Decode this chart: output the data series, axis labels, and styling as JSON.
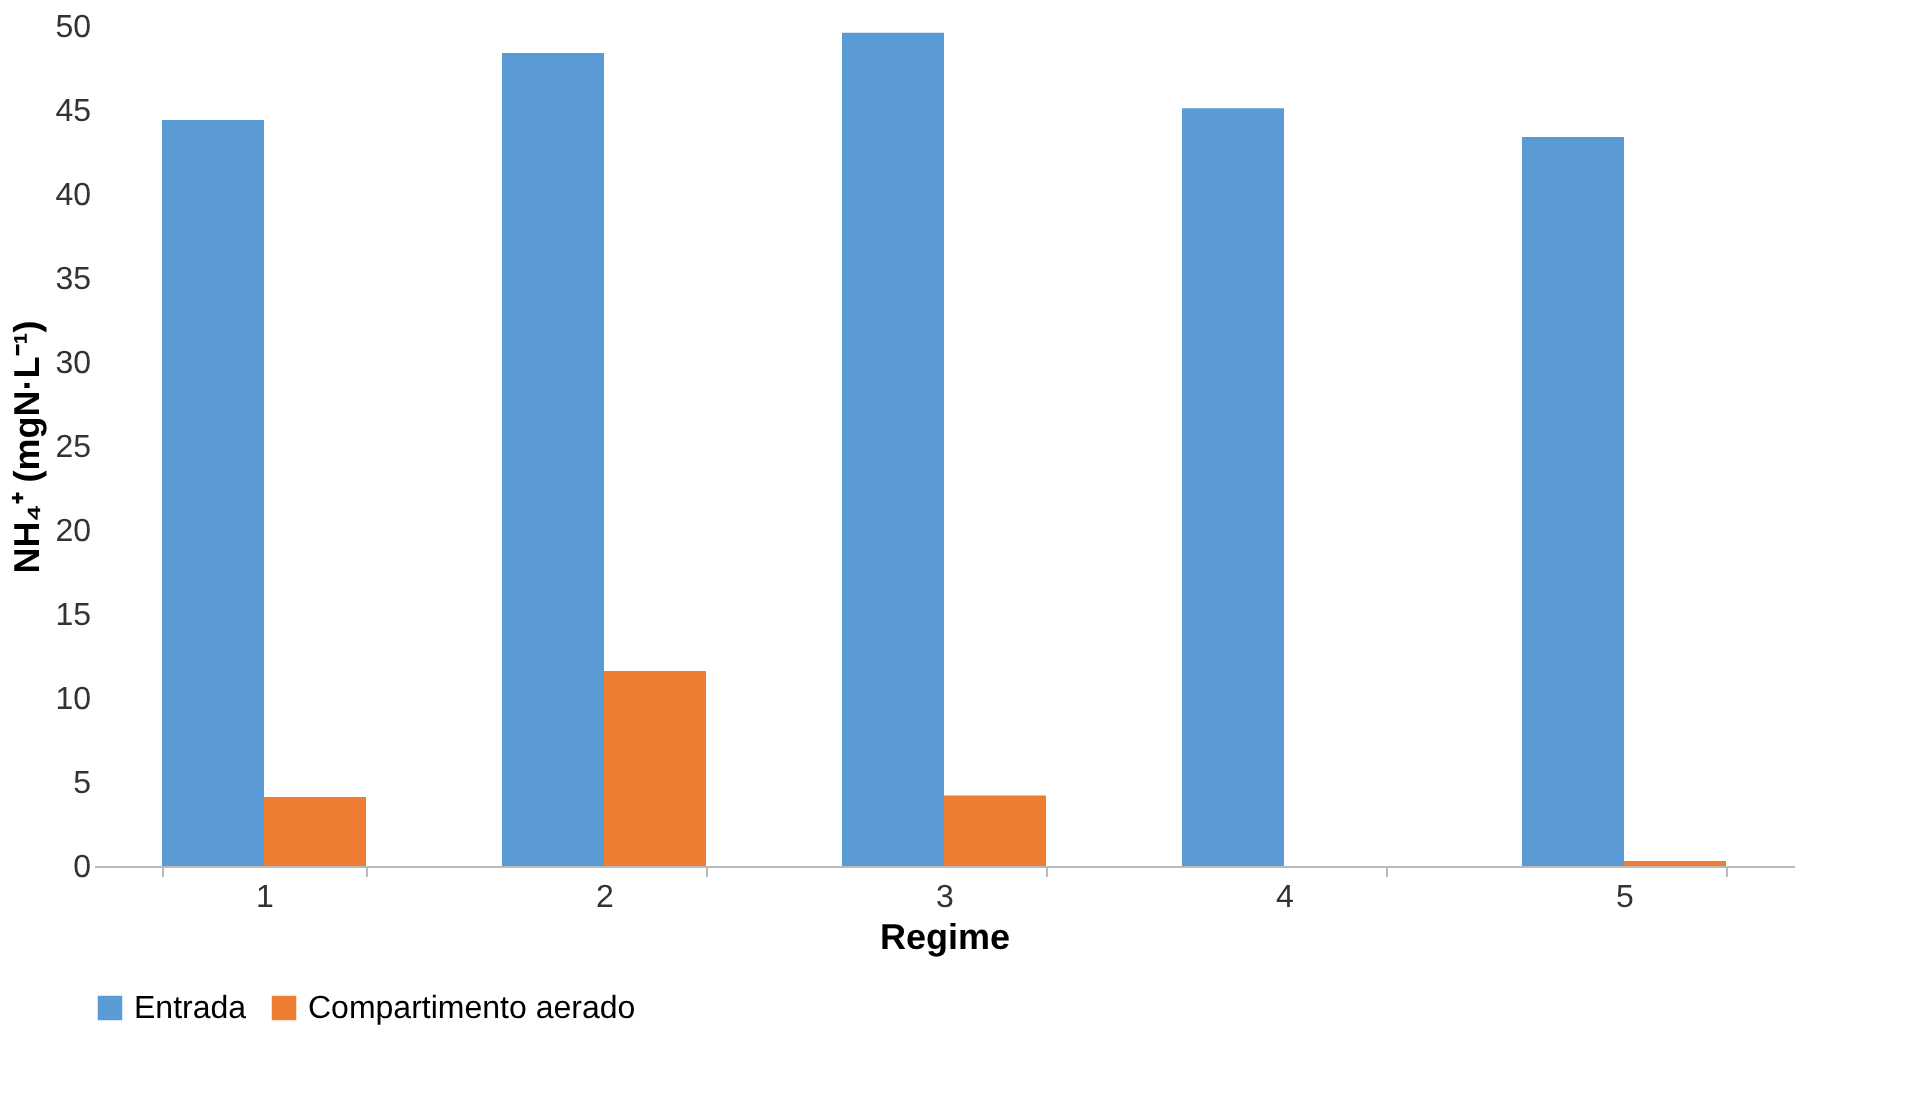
{
  "chart_data": {
    "type": "bar",
    "xlabel": "Regime",
    "ylabel": "NH₄⁺ (mgN·L⁻¹)",
    "categories": [
      "1",
      "2",
      "3",
      "4",
      "5"
    ],
    "series": [
      {
        "name": "Entrada",
        "color": "#5b9bd5",
        "values": [
          44.4,
          48.4,
          49.6,
          45.1,
          43.4
        ]
      },
      {
        "name": "Compartimento aerado",
        "color": "#ed7d31",
        "values": [
          4.1,
          11.6,
          4.2,
          0,
          0.3
        ]
      }
    ],
    "ylim": [
      0,
      50
    ],
    "yticks": [
      0,
      5,
      10,
      15,
      20,
      25,
      30,
      35,
      40,
      45,
      50
    ],
    "grid": false,
    "legend": "bottom"
  }
}
